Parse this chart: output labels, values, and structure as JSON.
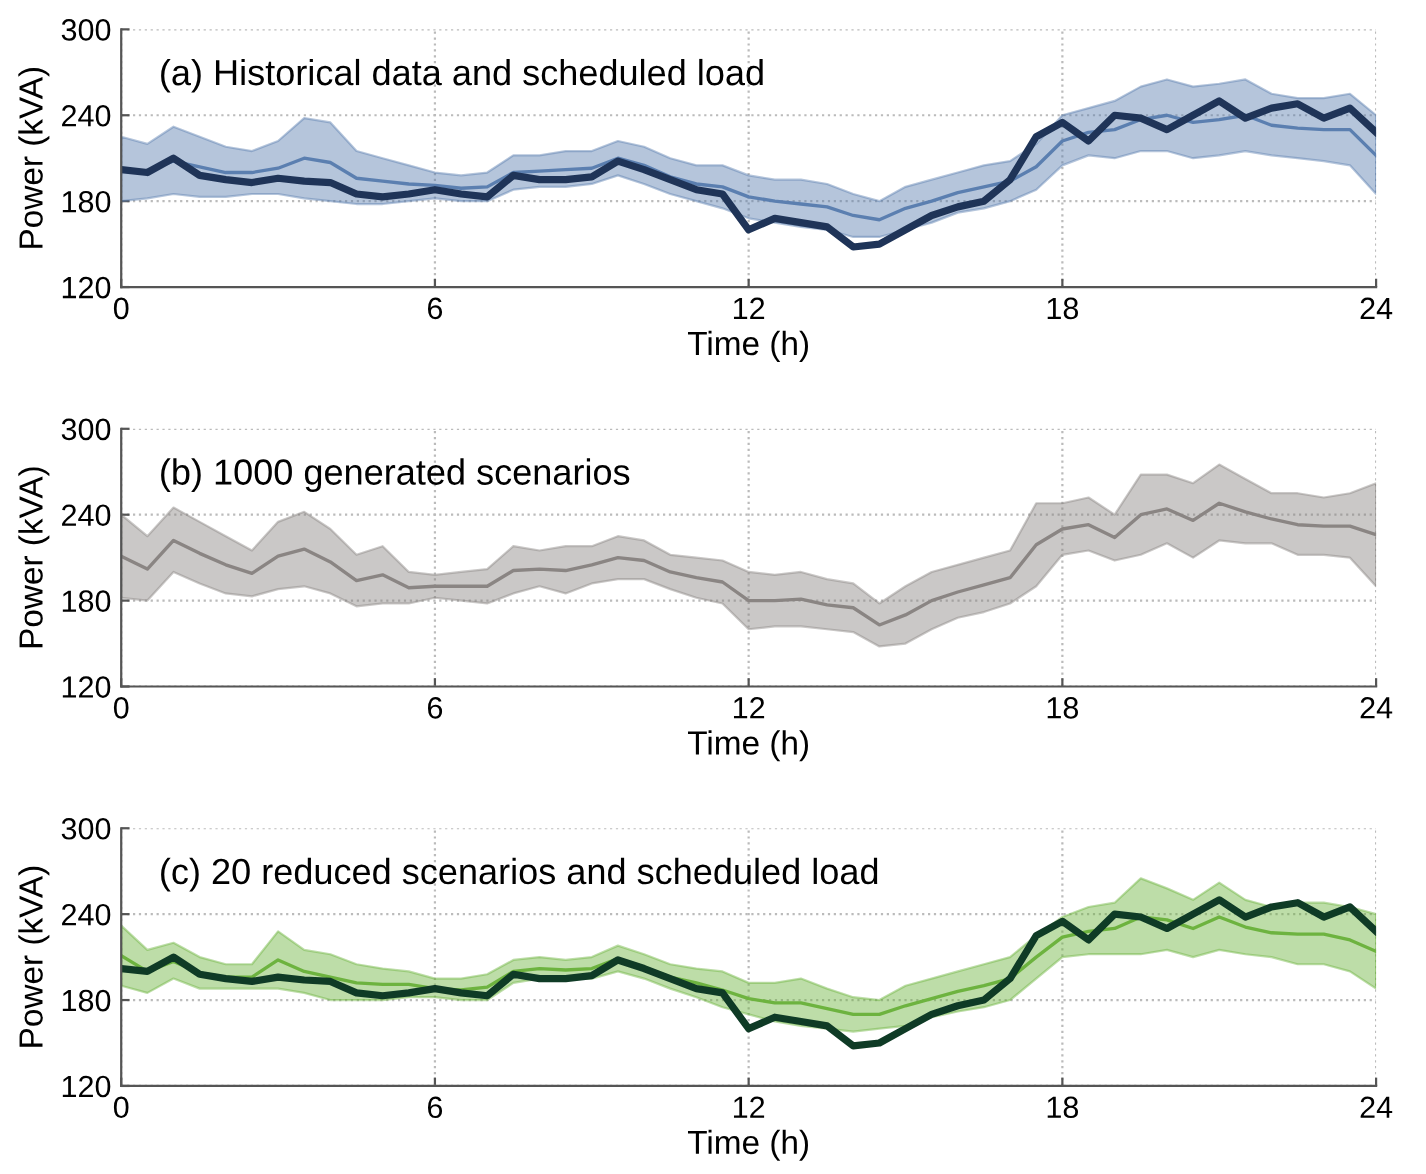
{
  "chart_data": [
    {
      "type": "line",
      "title": "(a) Historical data and scheduled load",
      "xlabel": "Time (h)",
      "ylabel": "Power (kVA)",
      "x": [
        0,
        0.5,
        1,
        1.5,
        2,
        2.5,
        3,
        3.5,
        4,
        4.5,
        5,
        5.5,
        6,
        6.5,
        7,
        7.5,
        8,
        8.5,
        9,
        9.5,
        10,
        10.5,
        11,
        11.5,
        12,
        12.5,
        13,
        13.5,
        14,
        14.5,
        15,
        15.5,
        16,
        16.5,
        17,
        17.5,
        18,
        18.5,
        19,
        19.5,
        20,
        20.5,
        21,
        21.5,
        22,
        22.5,
        23,
        23.5,
        24
      ],
      "xlim": [
        0,
        24
      ],
      "xticks": [
        0,
        6,
        12,
        18,
        24
      ],
      "ylim": [
        120,
        300
      ],
      "yticks": [
        120,
        180,
        240,
        300
      ],
      "grid": true,
      "series": [
        {
          "color": "#5b7fb0",
          "values": [
            202,
            201,
            208,
            204,
            200,
            200,
            203,
            210,
            207,
            196,
            194,
            192,
            191,
            189,
            190,
            200,
            201,
            202,
            203,
            210,
            205,
            197,
            192,
            190,
            183,
            180,
            178,
            176,
            170,
            167,
            175,
            180,
            186,
            190,
            194,
            204,
            222,
            228,
            230,
            237,
            240,
            235,
            237,
            240,
            233,
            231,
            230,
            230,
            212
          ],
          "lower": [
            180,
            182,
            185,
            183,
            183,
            185,
            185,
            182,
            180,
            178,
            178,
            180,
            182,
            180,
            180,
            188,
            190,
            190,
            192,
            198,
            192,
            185,
            180,
            175,
            168,
            165,
            162,
            160,
            155,
            155,
            160,
            165,
            172,
            175,
            180,
            188,
            205,
            212,
            210,
            215,
            215,
            210,
            212,
            215,
            212,
            210,
            208,
            205,
            185
          ],
          "upper": [
            225,
            220,
            232,
            225,
            218,
            215,
            222,
            238,
            235,
            215,
            210,
            205,
            200,
            198,
            200,
            212,
            212,
            215,
            215,
            222,
            218,
            210,
            205,
            205,
            198,
            195,
            195,
            192,
            185,
            180,
            190,
            195,
            200,
            205,
            208,
            220,
            240,
            245,
            250,
            260,
            265,
            260,
            262,
            265,
            255,
            252,
            252,
            255,
            240
          ]
        },
        {
          "type": "line",
          "color": "#1f3458",
          "values": [
            202,
            200,
            210,
            198,
            195,
            193,
            196,
            194,
            193,
            185,
            183,
            185,
            188,
            185,
            183,
            198,
            195,
            195,
            197,
            208,
            202,
            195,
            188,
            185,
            160,
            168,
            165,
            162,
            148,
            150,
            160,
            170,
            176,
            180,
            195,
            225,
            235,
            222,
            240,
            238,
            230,
            240,
            250,
            238,
            245,
            248,
            238,
            245,
            228
          ]
        }
      ]
    },
    {
      "type": "line",
      "title": "(b) 1000 generated scenarios",
      "xlabel": "Time (h)",
      "ylabel": "Power (kVA)",
      "x": [
        0,
        0.5,
        1,
        1.5,
        2,
        2.5,
        3,
        3.5,
        4,
        4.5,
        5,
        5.5,
        6,
        6.5,
        7,
        7.5,
        8,
        8.5,
        9,
        9.5,
        10,
        10.5,
        11,
        11.5,
        12,
        12.5,
        13,
        13.5,
        14,
        14.5,
        15,
        15.5,
        16,
        16.5,
        17,
        17.5,
        18,
        18.5,
        19,
        19.5,
        20,
        20.5,
        21,
        21.5,
        22,
        22.5,
        23,
        23.5,
        24
      ],
      "xlim": [
        0,
        24
      ],
      "xticks": [
        0,
        6,
        12,
        18,
        24
      ],
      "ylim": [
        120,
        300
      ],
      "yticks": [
        120,
        180,
        240,
        300
      ],
      "grid": true,
      "series": [
        {
          "color": "#8a8583",
          "values": [
            211,
            202,
            222,
            213,
            205,
            199,
            211,
            216,
            207,
            194,
            198,
            189,
            190,
            190,
            190,
            201,
            202,
            201,
            205,
            210,
            208,
            200,
            196,
            193,
            180,
            180,
            181,
            177,
            175,
            163,
            170,
            180,
            186,
            191,
            196,
            219,
            230,
            233,
            224,
            240,
            244,
            236,
            248,
            242,
            237,
            233,
            232,
            232,
            226
          ],
          "lower": [
            182,
            180,
            200,
            192,
            185,
            183,
            188,
            190,
            185,
            176,
            178,
            178,
            182,
            180,
            178,
            185,
            190,
            185,
            192,
            195,
            195,
            188,
            182,
            178,
            160,
            162,
            162,
            160,
            158,
            148,
            150,
            160,
            168,
            172,
            178,
            190,
            212,
            215,
            208,
            212,
            220,
            210,
            222,
            220,
            220,
            212,
            212,
            210,
            190
          ],
          "upper": [
            240,
            225,
            245,
            235,
            225,
            215,
            235,
            242,
            230,
            212,
            218,
            200,
            198,
            200,
            202,
            218,
            215,
            218,
            218,
            225,
            222,
            212,
            210,
            208,
            200,
            198,
            200,
            195,
            192,
            178,
            190,
            200,
            205,
            210,
            215,
            248,
            248,
            252,
            240,
            268,
            268,
            262,
            275,
            265,
            255,
            255,
            252,
            255,
            262
          ]
        }
      ]
    },
    {
      "type": "line",
      "title": "(c) 20 reduced scenarios and scheduled load",
      "xlabel": "Time (h)",
      "ylabel": "Power (kVA)",
      "x": [
        0,
        0.5,
        1,
        1.5,
        2,
        2.5,
        3,
        3.5,
        4,
        4.5,
        5,
        5.5,
        6,
        6.5,
        7,
        7.5,
        8,
        8.5,
        9,
        9.5,
        10,
        10.5,
        11,
        11.5,
        12,
        12.5,
        13,
        13.5,
        14,
        14.5,
        15,
        15.5,
        16,
        16.5,
        17,
        17.5,
        18,
        18.5,
        19,
        19.5,
        20,
        20.5,
        21,
        21.5,
        22,
        22.5,
        23,
        23.5,
        24
      ],
      "xlim": [
        0,
        24
      ],
      "xticks": [
        0,
        6,
        12,
        18,
        24
      ],
      "ylim": [
        120,
        300
      ],
      "yticks": [
        120,
        180,
        240,
        300
      ],
      "grid": true,
      "series": [
        {
          "color": "#6db33f",
          "values": [
            211,
            200,
            207,
            199,
            196,
            196,
            208,
            200,
            196,
            192,
            191,
            191,
            188,
            187,
            189,
            200,
            202,
            201,
            202,
            209,
            203,
            196,
            192,
            187,
            181,
            178,
            178,
            174,
            170,
            170,
            176,
            181,
            186,
            190,
            195,
            210,
            224,
            228,
            230,
            238,
            236,
            230,
            238,
            231,
            227,
            226,
            226,
            222,
            214
          ],
          "lower": [
            190,
            185,
            195,
            188,
            188,
            188,
            188,
            185,
            180,
            180,
            180,
            182,
            182,
            180,
            180,
            192,
            195,
            195,
            195,
            200,
            195,
            188,
            182,
            175,
            170,
            165,
            162,
            160,
            158,
            160,
            162,
            168,
            172,
            175,
            180,
            195,
            210,
            212,
            212,
            212,
            215,
            210,
            215,
            212,
            210,
            205,
            205,
            200,
            188
          ],
          "upper": [
            232,
            215,
            220,
            210,
            205,
            205,
            228,
            215,
            212,
            205,
            202,
            200,
            195,
            195,
            198,
            208,
            210,
            208,
            210,
            218,
            212,
            205,
            202,
            200,
            192,
            192,
            195,
            188,
            182,
            180,
            190,
            195,
            200,
            205,
            210,
            225,
            238,
            245,
            248,
            265,
            258,
            250,
            262,
            250,
            245,
            248,
            248,
            245,
            240
          ]
        },
        {
          "type": "line",
          "color": "#0f3b26",
          "values": [
            202,
            200,
            210,
            198,
            195,
            193,
            196,
            194,
            193,
            185,
            183,
            185,
            188,
            185,
            183,
            198,
            195,
            195,
            197,
            208,
            202,
            195,
            188,
            185,
            160,
            168,
            165,
            162,
            148,
            150,
            160,
            170,
            176,
            180,
            195,
            225,
            235,
            222,
            240,
            238,
            230,
            240,
            250,
            238,
            245,
            248,
            238,
            245,
            228
          ]
        }
      ]
    }
  ]
}
